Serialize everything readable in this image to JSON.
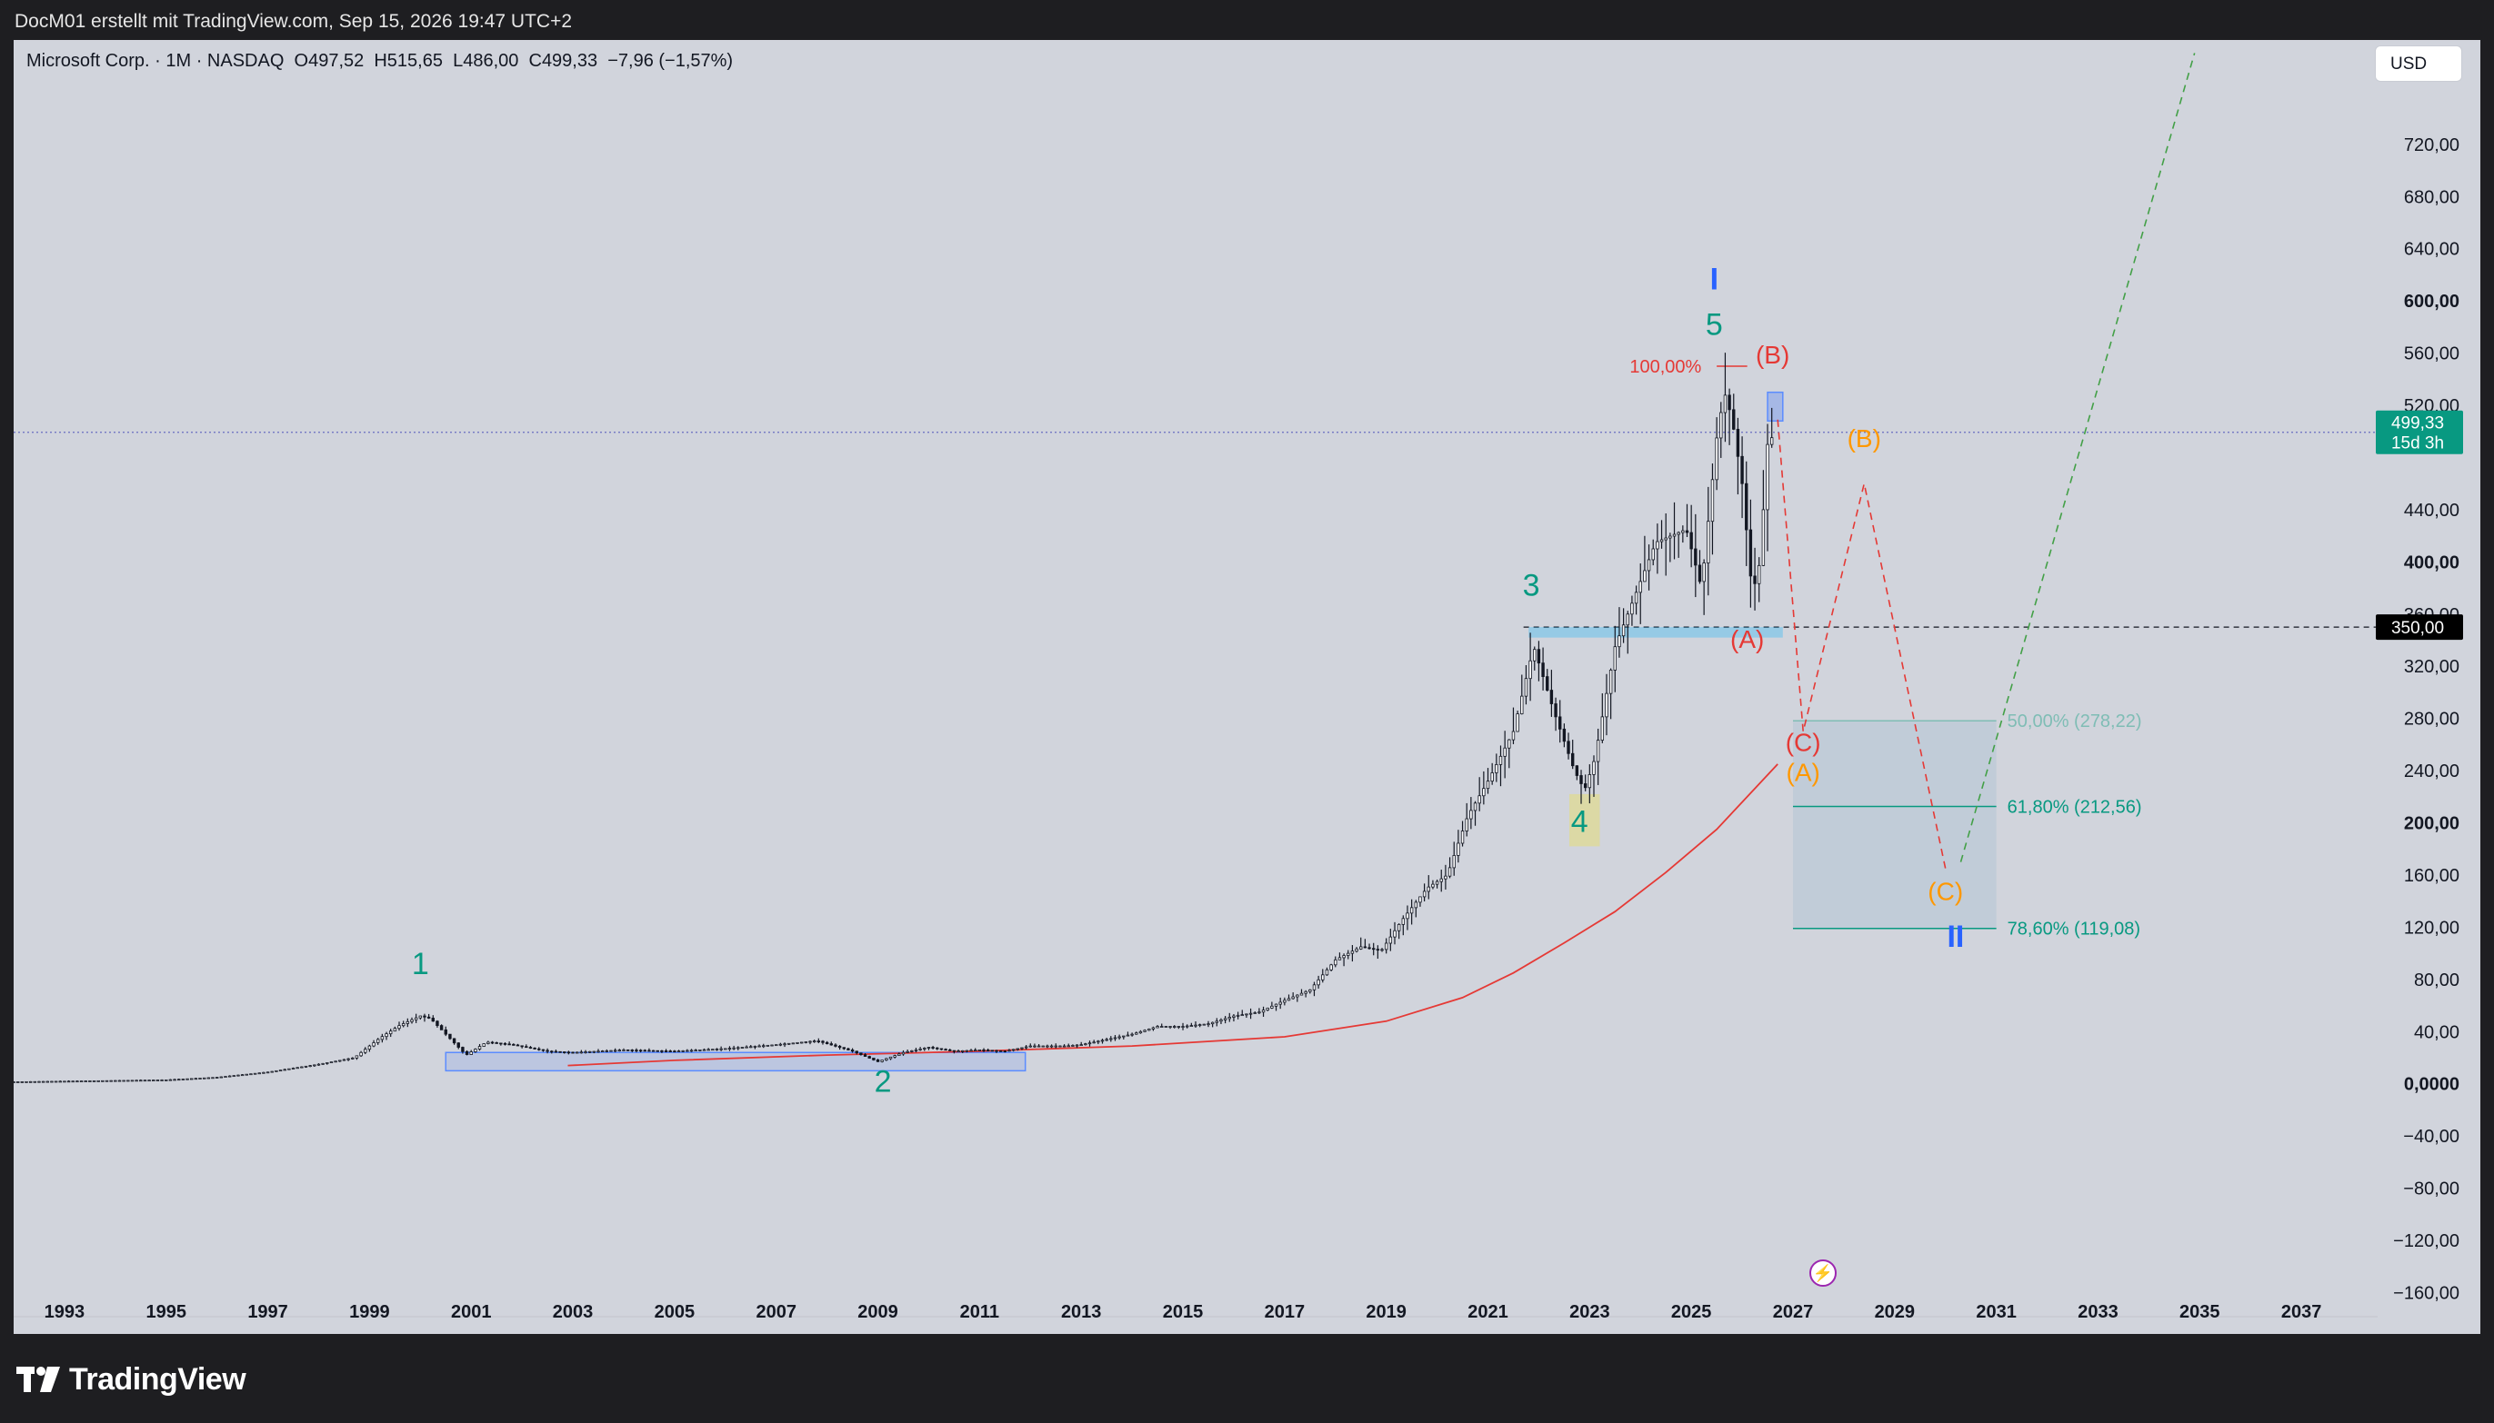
{
  "header": {
    "text": "DocM01 erstellt mit TradingView.com, Sep 15, 2026 19:47 UTC+2"
  },
  "legend": {
    "symbol": "Microsoft Corp. · 1M · NASDAQ",
    "ohlc": "O497,52  H515,65  L486,00  C499,33  −7,96 (−1,57%)"
  },
  "currency_button": "USD",
  "footer": {
    "brand": "TradingView"
  },
  "colors": {
    "background": "#d1d4dc",
    "candle": "#131722",
    "ma_line": "#e53935",
    "wave_green": "#089981",
    "wave_blue": "#2962ff",
    "wave_red": "#e53935",
    "wave_orange": "#ff9800",
    "price_tag": "#089981"
  },
  "chart_data": {
    "type": "candlestick",
    "title": "Microsoft Corp. · 1M · NASDAQ",
    "x_range": [
      1992,
      2038.5
    ],
    "y_range": [
      -175,
      800
    ],
    "x_ticks": [
      "1993",
      "1995",
      "1997",
      "1999",
      "2001",
      "2003",
      "2005",
      "2007",
      "2009",
      "2011",
      "2013",
      "2015",
      "2017",
      "2019",
      "2021",
      "2023",
      "2025",
      "2027",
      "2029",
      "2031",
      "2033",
      "2035",
      "2037"
    ],
    "y_ticks": [
      {
        "value": 720,
        "label": "720,00",
        "bold": false
      },
      {
        "value": 680,
        "label": "680,00",
        "bold": false
      },
      {
        "value": 640,
        "label": "640,00",
        "bold": false
      },
      {
        "value": 600,
        "label": "600,00",
        "bold": true
      },
      {
        "value": 560,
        "label": "560,00",
        "bold": false
      },
      {
        "value": 520,
        "label": "520,00",
        "bold": false
      },
      {
        "value": 440,
        "label": "440,00",
        "bold": false
      },
      {
        "value": 400,
        "label": "400,00",
        "bold": true
      },
      {
        "value": 360,
        "label": "360,00",
        "bold": false
      },
      {
        "value": 320,
        "label": "320,00",
        "bold": false
      },
      {
        "value": 280,
        "label": "280,00",
        "bold": false
      },
      {
        "value": 240,
        "label": "240,00",
        "bold": false
      },
      {
        "value": 200,
        "label": "200,00",
        "bold": true
      },
      {
        "value": 160,
        "label": "160,00",
        "bold": false
      },
      {
        "value": 120,
        "label": "120,00",
        "bold": false
      },
      {
        "value": 80,
        "label": "80,00",
        "bold": false
      },
      {
        "value": 40,
        "label": "40,00",
        "bold": false
      },
      {
        "value": 0,
        "label": "0,0000",
        "bold": true
      },
      {
        "value": -40,
        "label": "−40,00",
        "bold": false
      },
      {
        "value": -80,
        "label": "−80,00",
        "bold": false
      },
      {
        "value": -120,
        "label": "−120,00",
        "bold": false
      },
      {
        "value": -160,
        "label": "−160,00",
        "bold": false
      }
    ],
    "price_series": [
      [
        1992.0,
        1.5
      ],
      [
        1993,
        2
      ],
      [
        1994,
        2.5
      ],
      [
        1995,
        3
      ],
      [
        1996,
        5
      ],
      [
        1997,
        9
      ],
      [
        1998,
        15
      ],
      [
        1998.7,
        20
      ],
      [
        1999.2,
        35
      ],
      [
        1999.6,
        45
      ],
      [
        2000.0,
        52
      ],
      [
        2000.2,
        50
      ],
      [
        2000.5,
        38
      ],
      [
        2000.9,
        22
      ],
      [
        2001.3,
        32
      ],
      [
        2001.8,
        30
      ],
      [
        2002.5,
        25
      ],
      [
        2003.0,
        24
      ],
      [
        2004.0,
        26
      ],
      [
        2005.0,
        25
      ],
      [
        2006.0,
        27
      ],
      [
        2007.0,
        30
      ],
      [
        2007.8,
        33
      ],
      [
        2008.5,
        25
      ],
      [
        2009.0,
        17
      ],
      [
        2009.5,
        24
      ],
      [
        2010.0,
        28
      ],
      [
        2010.5,
        25
      ],
      [
        2011.0,
        26
      ],
      [
        2011.5,
        25
      ],
      [
        2012.0,
        29
      ],
      [
        2012.7,
        29
      ],
      [
        2013.0,
        30
      ],
      [
        2013.5,
        34
      ],
      [
        2014.0,
        38
      ],
      [
        2014.5,
        44
      ],
      [
        2015.0,
        44
      ],
      [
        2015.5,
        46
      ],
      [
        2016.0,
        52
      ],
      [
        2016.5,
        55
      ],
      [
        2017.0,
        64
      ],
      [
        2017.5,
        72
      ],
      [
        2018.0,
        95
      ],
      [
        2018.5,
        105
      ],
      [
        2018.9,
        102
      ],
      [
        2019.3,
        125
      ],
      [
        2019.8,
        150
      ],
      [
        2020.2,
        160
      ],
      [
        2020.6,
        205
      ],
      [
        2021.0,
        232
      ],
      [
        2021.5,
        270
      ],
      [
        2021.9,
        335
      ],
      [
        2022.3,
        285
      ],
      [
        2022.7,
        240
      ],
      [
        2022.9,
        225
      ],
      [
        2023.1,
        249
      ],
      [
        2023.5,
        335
      ],
      [
        2023.9,
        375
      ],
      [
        2024.3,
        415
      ],
      [
        2024.6,
        420
      ],
      [
        2024.9,
        425
      ],
      [
        2025.2,
        380
      ],
      [
        2025.5,
        495
      ],
      [
        2025.65,
        530
      ],
      [
        2025.8,
        510
      ],
      [
        2026.0,
        460
      ],
      [
        2026.2,
        375
      ],
      [
        2026.35,
        400
      ],
      [
        2026.5,
        490
      ],
      [
        2026.65,
        499.33
      ]
    ],
    "moving_average": [
      [
        2002.9,
        14
      ],
      [
        2005,
        18
      ],
      [
        2008,
        22
      ],
      [
        2011,
        25
      ],
      [
        2014,
        29
      ],
      [
        2017,
        36
      ],
      [
        2019,
        48
      ],
      [
        2020.5,
        66
      ],
      [
        2021.5,
        85
      ],
      [
        2022.5,
        108
      ],
      [
        2023.5,
        132
      ],
      [
        2024.5,
        162
      ],
      [
        2025.5,
        195
      ],
      [
        2026.7,
        245
      ]
    ],
    "last_price": {
      "value": 499.33,
      "label": "499,33",
      "countdown": "15d 3h"
    },
    "horizontal_line": {
      "value": 350,
      "label": "350,00"
    },
    "fibonacci": [
      {
        "value": 278.22,
        "label": "50,00% (278,22)"
      },
      {
        "value": 212.56,
        "label": "61,80% (212,56)"
      },
      {
        "value": 119.08,
        "label": "78,60% (119,08)"
      }
    ],
    "fib_top_label": {
      "value": 550,
      "label": "100,00%"
    },
    "projection_red": [
      [
        2026.7,
        509
      ],
      [
        2027.2,
        270
      ],
      [
        2028.4,
        460
      ],
      [
        2030.0,
        165
      ]
    ],
    "projection_green": [
      [
        2030.3,
        170
      ],
      [
        2034.9,
        790
      ]
    ],
    "wave_labels": [
      {
        "text": "1",
        "x": 2000.0,
        "y": 84,
        "color": "wave_green"
      },
      {
        "text": "2",
        "x": 2009.1,
        "y": -6,
        "color": "wave_green"
      },
      {
        "text": "3",
        "x": 2021.85,
        "y": 374,
        "color": "wave_green"
      },
      {
        "text": "4",
        "x": 2022.8,
        "y": 193,
        "color": "wave_green"
      },
      {
        "text": "5",
        "x": 2025.45,
        "y": 574,
        "color": "wave_green"
      },
      {
        "text": "I",
        "x": 2025.45,
        "y": 609,
        "color": "wave_blue"
      },
      {
        "text": "II",
        "x": 2030.2,
        "y": 105,
        "color": "wave_blue"
      },
      {
        "text": "(B)",
        "x": 2026.6,
        "y": 552,
        "color": "wave_red"
      },
      {
        "text": "(A)",
        "x": 2026.1,
        "y": 334,
        "color": "wave_red"
      },
      {
        "text": "(C)",
        "x": 2027.2,
        "y": 255,
        "color": "wave_red"
      },
      {
        "text": "(A)",
        "x": 2027.2,
        "y": 232,
        "color": "wave_orange"
      },
      {
        "text": "(B)",
        "x": 2028.4,
        "y": 488,
        "color": "wave_orange"
      },
      {
        "text": "(C)",
        "x": 2030.0,
        "y": 141,
        "color": "wave_orange"
      }
    ]
  }
}
